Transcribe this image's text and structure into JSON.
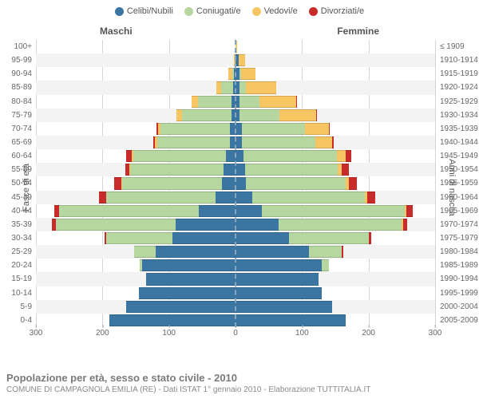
{
  "legend": [
    {
      "label": "Celibi/Nubili",
      "color": "#3b76a3"
    },
    {
      "label": "Coniugati/e",
      "color": "#b7d7a0"
    },
    {
      "label": "Vedovi/e",
      "color": "#f7c663"
    },
    {
      "label": "Divorziati/e",
      "color": "#c92a2a"
    }
  ],
  "gender": {
    "m": "Maschi",
    "f": "Femmine"
  },
  "axis_titles": {
    "left": "Fasce di età",
    "right": "Anni di nascita"
  },
  "x_axis": {
    "max": 300,
    "ticks": [
      300,
      200,
      100,
      0,
      100,
      200,
      300
    ]
  },
  "footer": {
    "title": "Popolazione per età, sesso e stato civile - 2010",
    "sub": "COMUNE DI CAMPAGNOLA EMILIA (RE) - Dati ISTAT 1° gennaio 2010 - Elaborazione TUTTITALIA.IT"
  },
  "style": {
    "background_color": "#ffffff",
    "row_alt_color": "#f3f3f3",
    "grid_color": "#d5d5d5",
    "center_line_color": "#88a5c0",
    "label_fontsize": 10,
    "legend_fontsize": 11
  },
  "rows": [
    {
      "age": "100+",
      "birth": "≤ 1909",
      "m": [
        0,
        0,
        0,
        0
      ],
      "f": [
        0,
        0,
        2,
        0
      ]
    },
    {
      "age": "95-99",
      "birth": "1910-1914",
      "m": [
        0,
        0,
        3,
        0
      ],
      "f": [
        5,
        0,
        10,
        0
      ]
    },
    {
      "age": "90-94",
      "birth": "1915-1919",
      "m": [
        2,
        3,
        6,
        0
      ],
      "f": [
        6,
        2,
        22,
        0
      ]
    },
    {
      "age": "85-89",
      "birth": "1920-1924",
      "m": [
        4,
        18,
        7,
        0
      ],
      "f": [
        6,
        10,
        45,
        0
      ]
    },
    {
      "age": "80-84",
      "birth": "1925-1929",
      "m": [
        6,
        50,
        10,
        0
      ],
      "f": [
        6,
        30,
        55,
        2
      ]
    },
    {
      "age": "75-79",
      "birth": "1930-1934",
      "m": [
        6,
        75,
        8,
        0
      ],
      "f": [
        6,
        60,
        55,
        2
      ]
    },
    {
      "age": "70-74",
      "birth": "1935-1939",
      "m": [
        8,
        105,
        4,
        2
      ],
      "f": [
        10,
        95,
        35,
        2
      ]
    },
    {
      "age": "65-69",
      "birth": "1940-1944",
      "m": [
        8,
        110,
        3,
        3
      ],
      "f": [
        10,
        110,
        25,
        3
      ]
    },
    {
      "age": "60-64",
      "birth": "1945-1949",
      "m": [
        14,
        140,
        2,
        8
      ],
      "f": [
        12,
        140,
        14,
        8
      ]
    },
    {
      "age": "55-59",
      "birth": "1950-1954",
      "m": [
        18,
        140,
        2,
        6
      ],
      "f": [
        14,
        140,
        6,
        10
      ]
    },
    {
      "age": "50-54",
      "birth": "1955-1959",
      "m": [
        20,
        150,
        2,
        10
      ],
      "f": [
        15,
        150,
        5,
        12
      ]
    },
    {
      "age": "45-49",
      "birth": "1960-1964",
      "m": [
        30,
        165,
        0,
        10
      ],
      "f": [
        25,
        170,
        3,
        12
      ]
    },
    {
      "age": "40-44",
      "birth": "1965-1969",
      "m": [
        55,
        210,
        0,
        8
      ],
      "f": [
        40,
        215,
        2,
        10
      ]
    },
    {
      "age": "35-39",
      "birth": "1970-1974",
      "m": [
        90,
        180,
        0,
        6
      ],
      "f": [
        65,
        185,
        2,
        6
      ]
    },
    {
      "age": "30-34",
      "birth": "1975-1979",
      "m": [
        95,
        100,
        0,
        2
      ],
      "f": [
        80,
        120,
        0,
        4
      ]
    },
    {
      "age": "25-29",
      "birth": "1980-1984",
      "m": [
        120,
        32,
        0,
        0
      ],
      "f": [
        110,
        50,
        0,
        2
      ]
    },
    {
      "age": "20-24",
      "birth": "1985-1989",
      "m": [
        140,
        4,
        0,
        0
      ],
      "f": [
        130,
        10,
        0,
        0
      ]
    },
    {
      "age": "15-19",
      "birth": "1990-1994",
      "m": [
        135,
        0,
        0,
        0
      ],
      "f": [
        125,
        0,
        0,
        0
      ]
    },
    {
      "age": "10-14",
      "birth": "1995-1999",
      "m": [
        145,
        0,
        0,
        0
      ],
      "f": [
        130,
        0,
        0,
        0
      ]
    },
    {
      "age": "5-9",
      "birth": "2000-2004",
      "m": [
        165,
        0,
        0,
        0
      ],
      "f": [
        145,
        0,
        0,
        0
      ]
    },
    {
      "age": "0-4",
      "birth": "2005-2009",
      "m": [
        190,
        0,
        0,
        0
      ],
      "f": [
        165,
        0,
        0,
        0
      ]
    }
  ]
}
